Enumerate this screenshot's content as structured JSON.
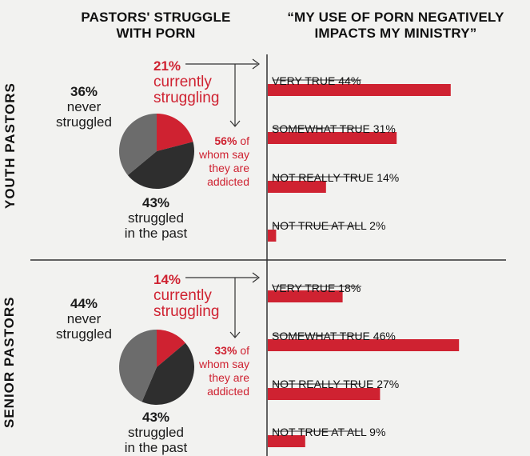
{
  "headers": {
    "left": [
      "PASTORS' STRUGGLE",
      "WITH PORN"
    ],
    "right": [
      "“MY USE OF PORN NEGATIVELY",
      "IMPACTS MY MINISTRY”"
    ]
  },
  "colors": {
    "red": "#cf2231",
    "dark": "#2e2e2e",
    "gray": "#6c6c6c",
    "axis": "#333333"
  },
  "chart_data": [
    {
      "type": "pie",
      "group": "YOUTH PASTORS",
      "slices": [
        {
          "label": "currently struggling",
          "value": 21,
          "color": "#cf2231"
        },
        {
          "label": "struggled in the past",
          "value": 43,
          "color": "#2e2e2e"
        },
        {
          "label": "never struggled",
          "value": 36,
          "color": "#6c6c6c"
        }
      ],
      "currently_pct": "21%",
      "currently_text": [
        "currently",
        "struggling"
      ],
      "never_pct": "36%",
      "never_text": [
        "never",
        "struggled"
      ],
      "past_pct": "43%",
      "past_text": [
        "struggled",
        "in the past"
      ],
      "addicted_pct": "56%",
      "addicted_text": [
        "of",
        "whom say",
        "they are",
        "addicted"
      ]
    },
    {
      "type": "bar",
      "group": "YOUTH PASTORS",
      "categories": [
        "VERY TRUE",
        "SOMEWHAT TRUE",
        "NOT REALLY TRUE",
        "NOT TRUE AT ALL"
      ],
      "values": [
        44,
        31,
        14,
        2
      ],
      "labels": [
        "VERY TRUE 44%",
        "SOMEWHAT TRUE 31%",
        "NOT REALLY TRUE 14%",
        "NOT TRUE AT ALL 2%"
      ]
    },
    {
      "type": "pie",
      "group": "SENIOR PASTORS",
      "slices": [
        {
          "label": "currently struggling",
          "value": 14,
          "color": "#cf2231"
        },
        {
          "label": "struggled in the past",
          "value": 43,
          "color": "#2e2e2e"
        },
        {
          "label": "never struggled",
          "value": 44,
          "color": "#6c6c6c"
        }
      ],
      "currently_pct": "14%",
      "currently_text": [
        "currently",
        "struggling"
      ],
      "never_pct": "44%",
      "never_text": [
        "never",
        "struggled"
      ],
      "past_pct": "43%",
      "past_text": [
        "struggled",
        "in the past"
      ],
      "addicted_pct": "33%",
      "addicted_text": [
        "of",
        "whom say",
        "they are",
        "addicted"
      ]
    },
    {
      "type": "bar",
      "group": "SENIOR PASTORS",
      "categories": [
        "VERY TRUE",
        "SOMEWHAT TRUE",
        "NOT REALLY TRUE",
        "NOT TRUE AT ALL"
      ],
      "values": [
        18,
        46,
        27,
        9
      ],
      "labels": [
        "VERY TRUE 18%",
        "SOMEWHAT TRUE 46%",
        "NOT REALLY TRUE 27%",
        "NOT TRUE AT ALL 9%"
      ]
    }
  ]
}
